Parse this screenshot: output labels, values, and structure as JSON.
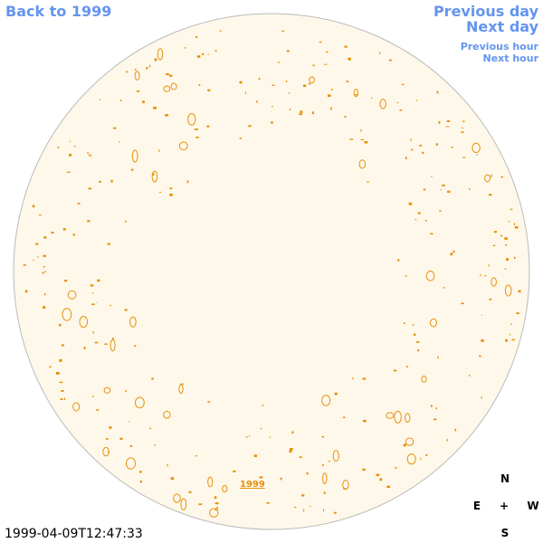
{
  "nav": {
    "back": "Back to 1999",
    "previous_day": "Previous day",
    "next_day": "Next day",
    "previous_hour": "Previous hour",
    "next_hour": "Next hour"
  },
  "disc_label": "1999",
  "timestamp": "1999-04-09T12:47:33",
  "compass": {
    "north": "N",
    "east": "E",
    "center": "+",
    "west": "W",
    "south": "S"
  }
}
